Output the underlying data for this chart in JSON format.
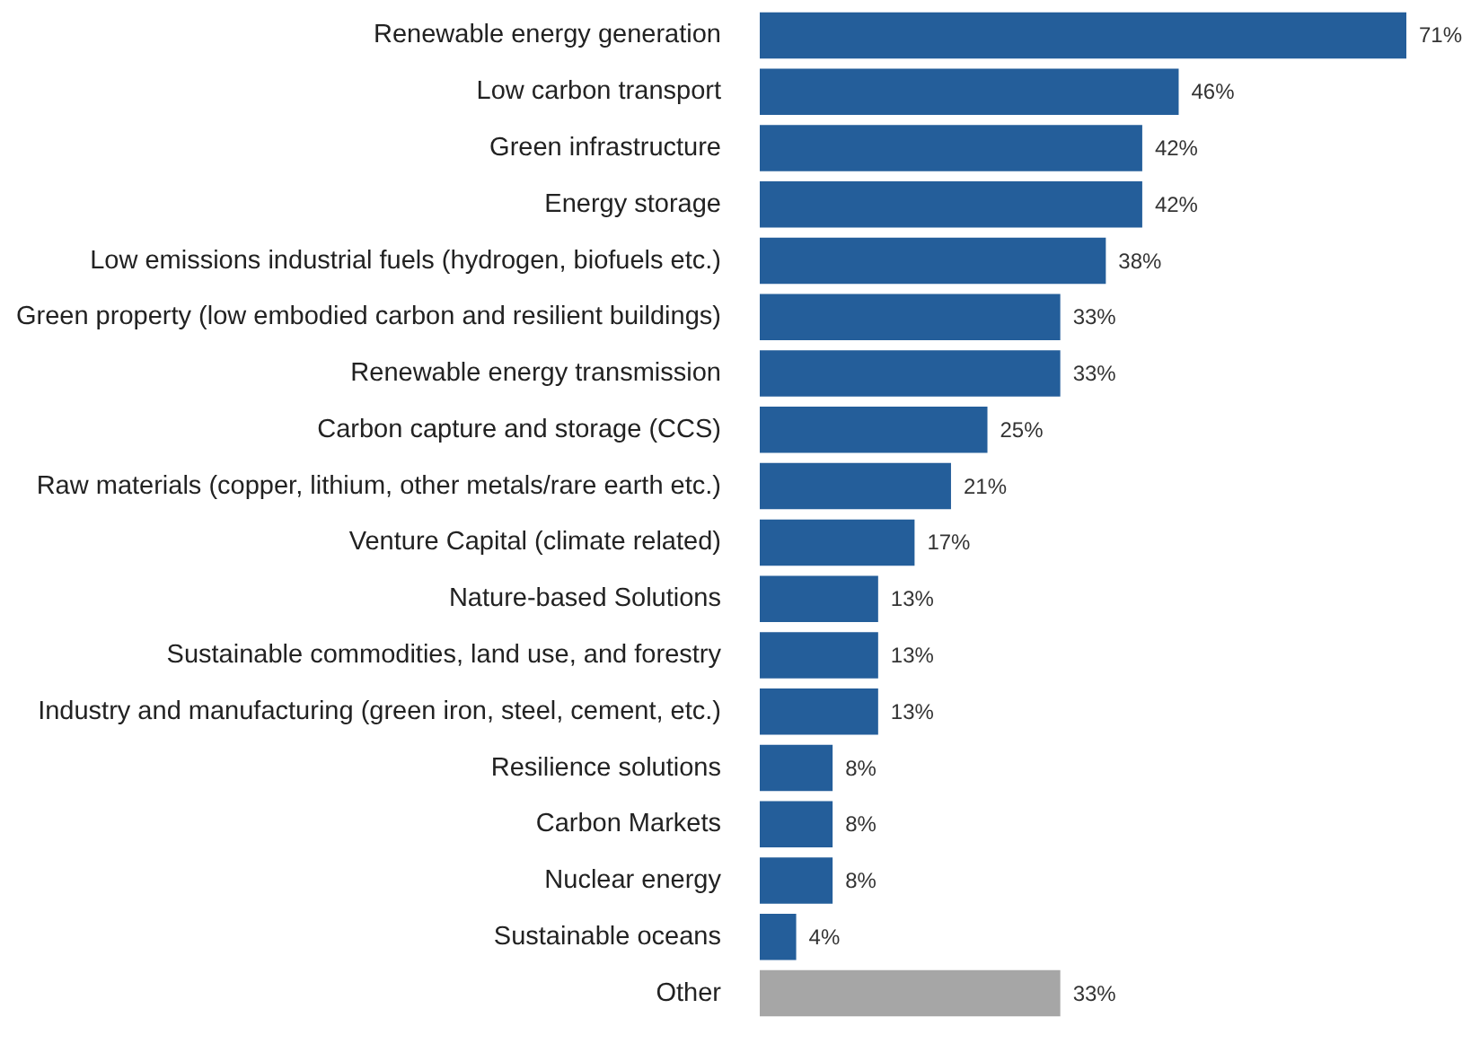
{
  "chart_data": {
    "type": "bar",
    "orientation": "horizontal",
    "categories": [
      "Renewable energy generation",
      "Low carbon transport",
      "Green infrastructure",
      "Energy storage",
      "Low emissions industrial fuels (hydrogen, biofuels etc.)",
      "Green property (low embodied carbon and resilient buildings)",
      "Renewable energy transmission",
      "Carbon capture and storage (CCS)",
      "Raw materials (copper, lithium, other metals/rare earth etc.)",
      "Venture Capital (climate related)",
      "Nature-based Solutions",
      "Sustainable commodities, land use, and forestry",
      "Industry and manufacturing (green iron, steel, cement, etc.)",
      "Resilience solutions",
      "Carbon Markets",
      "Nuclear energy",
      "Sustainable oceans",
      "Other"
    ],
    "values": [
      71,
      46,
      42,
      42,
      38,
      33,
      33,
      25,
      21,
      17,
      13,
      13,
      13,
      8,
      8,
      8,
      4,
      33
    ],
    "value_labels": [
      "71%",
      "46%",
      "42%",
      "42%",
      "38%",
      "33%",
      "33%",
      "25%",
      "21%",
      "17%",
      "13%",
      "13%",
      "13%",
      "8%",
      "8%",
      "8%",
      "4%",
      "33%"
    ],
    "colors": [
      "#245e9a",
      "#245e9a",
      "#245e9a",
      "#245e9a",
      "#245e9a",
      "#245e9a",
      "#245e9a",
      "#245e9a",
      "#245e9a",
      "#245e9a",
      "#245e9a",
      "#245e9a",
      "#245e9a",
      "#245e9a",
      "#245e9a",
      "#245e9a",
      "#245e9a",
      "#a6a6a6"
    ]
  }
}
